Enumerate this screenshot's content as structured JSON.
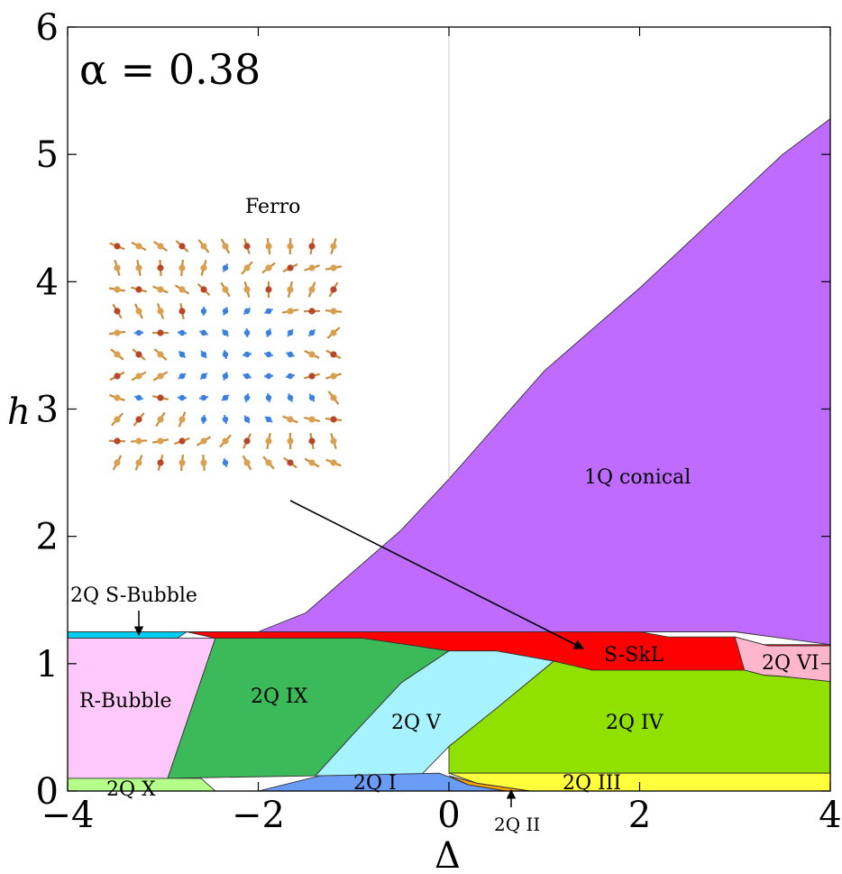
{
  "chart_data": {
    "type": "area",
    "xlabel": "Δ",
    "ylabel": "h",
    "xlim": [
      -4,
      4
    ],
    "ylim": [
      0,
      6
    ],
    "x_ticks": [
      "−4",
      "−2",
      "0",
      "2",
      "4"
    ],
    "y_ticks": [
      "0",
      "1",
      "2",
      "3",
      "4",
      "5",
      "6"
    ],
    "annotation": "α = 0.38",
    "inset_label": "Ferro",
    "phases": [
      {
        "key": "conical",
        "label": "1Q conical",
        "color": "#bf6bff",
        "polygon": [
          [
            -2,
            1.25
          ],
          [
            -1.5,
            1.4
          ],
          [
            -0.5,
            2.05
          ],
          [
            0,
            2.45
          ],
          [
            1,
            3.3
          ],
          [
            2,
            3.95
          ],
          [
            3.5,
            5.0
          ],
          [
            4,
            5.28
          ],
          [
            4,
            1.15
          ],
          [
            3.0,
            1.25
          ],
          [
            -2,
            1.25
          ]
        ]
      },
      {
        "key": "sskl",
        "label": "S-SkL",
        "color": "#ff0000",
        "polygon": [
          [
            -2.75,
            1.25
          ],
          [
            2.0,
            1.25
          ],
          [
            2.3,
            1.21
          ],
          [
            3.0,
            1.21
          ],
          [
            3.3,
            1.15
          ],
          [
            4,
            1.15
          ],
          [
            4,
            0.86
          ],
          [
            3.5,
            0.9
          ],
          [
            3.3,
            0.91
          ],
          [
            3.1,
            0.95
          ],
          [
            1.5,
            0.95
          ],
          [
            1.1,
            1.02
          ],
          [
            0.5,
            1.1
          ],
          [
            0,
            1.1
          ],
          [
            -0.9,
            1.2
          ],
          [
            -1.75,
            1.2
          ],
          [
            -2.45,
            1.2
          ],
          [
            -2.75,
            1.25
          ]
        ]
      },
      {
        "key": "iivi",
        "label": "2Q VI",
        "color": "#ffb6cc",
        "polygon": [
          [
            3.0,
            1.21
          ],
          [
            3.35,
            1.14
          ],
          [
            4,
            1.14
          ],
          [
            4,
            0.86
          ],
          [
            3.5,
            0.9
          ],
          [
            3.3,
            0.91
          ],
          [
            3.1,
            0.95
          ],
          [
            3.0,
            1.21
          ]
        ]
      },
      {
        "key": "sbubble",
        "label": "2Q S-Bubble",
        "color": "#00ccf0",
        "polygon": [
          [
            -4,
            1.25
          ],
          [
            -2.75,
            1.25
          ],
          [
            -2.85,
            1.2
          ],
          [
            -4,
            1.2
          ]
        ]
      },
      {
        "key": "rbubble",
        "label": "R-Bubble",
        "color": "#ffc8fa",
        "polygon": [
          [
            -4,
            1.2
          ],
          [
            -2.45,
            1.2
          ],
          [
            -2.95,
            0.1
          ],
          [
            -4,
            0.1
          ]
        ]
      },
      {
        "key": "iix",
        "label": "2Q IX",
        "color": "#3cba5a",
        "polygon": [
          [
            -2.45,
            1.2
          ],
          [
            -0.9,
            1.2
          ],
          [
            0,
            1.1
          ],
          [
            -0.5,
            0.85
          ],
          [
            -1.0,
            0.45
          ],
          [
            -1.4,
            0.12
          ],
          [
            -2.95,
            0.1
          ]
        ]
      },
      {
        "key": "iiv",
        "label": "2Q V",
        "color": "#a6f2ff",
        "polygon": [
          [
            0,
            1.1
          ],
          [
            0.5,
            1.1
          ],
          [
            1.1,
            1.02
          ],
          [
            0.5,
            0.65
          ],
          [
            0,
            0.35
          ],
          [
            -0.3,
            0.12
          ],
          [
            -1.4,
            0.12
          ],
          [
            -1.0,
            0.45
          ],
          [
            -0.5,
            0.85
          ]
        ]
      },
      {
        "key": "iiiv",
        "label": "2Q IV",
        "color": "#90e000",
        "polygon": [
          [
            1.1,
            1.02
          ],
          [
            1.5,
            0.95
          ],
          [
            3.1,
            0.95
          ],
          [
            3.3,
            0.91
          ],
          [
            3.5,
            0.9
          ],
          [
            4,
            0.86
          ],
          [
            4,
            0.14
          ],
          [
            0.0,
            0.14
          ],
          [
            0,
            0.35
          ],
          [
            0.5,
            0.65
          ]
        ]
      },
      {
        "key": "iix10",
        "label": "2Q X",
        "color": "#b3ff8a",
        "polygon": [
          [
            -4,
            0.1
          ],
          [
            -2.6,
            0.1
          ],
          [
            -2.45,
            0.0
          ],
          [
            -4,
            0.0
          ]
        ]
      },
      {
        "key": "iii",
        "label": "2Q I",
        "color": "#6a9cf5",
        "polygon": [
          [
            -2.45,
            0
          ],
          [
            -2.0,
            0
          ],
          [
            -1.35,
            0.12
          ],
          [
            -0.1,
            0.14
          ],
          [
            0.2,
            0.05
          ],
          [
            0.6,
            0
          ],
          [
            -2.45,
            0
          ]
        ]
      },
      {
        "key": "iiii",
        "label": "2Q III",
        "color": "#ffff3c",
        "polygon": [
          [
            0,
            0.14
          ],
          [
            4,
            0.14
          ],
          [
            4,
            0
          ],
          [
            0.85,
            0
          ],
          [
            0.3,
            0.06
          ]
        ]
      },
      {
        "key": "iiii2",
        "label": "2Q II",
        "color": "#ffa500",
        "polygon": [
          [
            0.0,
            0.12
          ],
          [
            0.3,
            0.06
          ],
          [
            0.85,
            0
          ],
          [
            0.6,
            0
          ],
          [
            0.2,
            0.05
          ]
        ]
      }
    ],
    "labels": {
      "conical": "1Q conical",
      "sskl": "S-SkL",
      "vi": "2Q VI",
      "sbubble": "2Q S-Bubble",
      "rbubble": "R-Bubble",
      "ix": "2Q IX",
      "v": "2Q V",
      "iv": "2Q IV",
      "x": "2Q X",
      "i": "2Q I",
      "iii": "2Q III",
      "ii": "2Q II"
    }
  }
}
